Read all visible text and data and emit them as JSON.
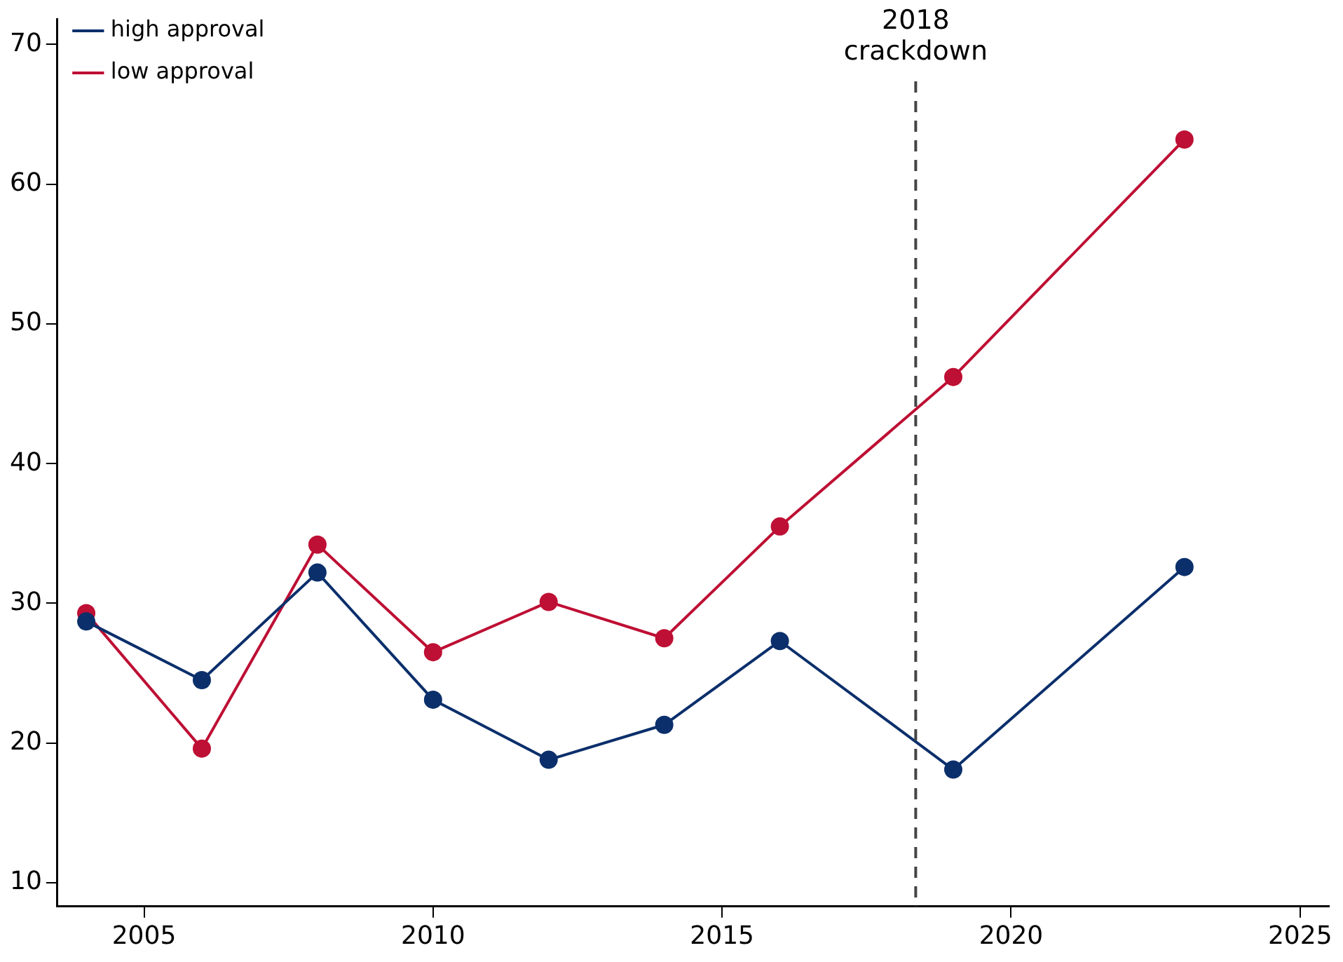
{
  "chart_data": {
    "type": "line",
    "marker": "circle",
    "legend": "top left",
    "grid": false,
    "xlim": [
      2003.5,
      2025.5
    ],
    "xticks": [
      2005,
      2010,
      2015,
      2020,
      2025
    ],
    "ylim": [
      8.3,
      71.8
    ],
    "yticks": [
      10,
      20,
      30,
      40,
      50,
      60,
      70
    ],
    "series": [
      {
        "name": "high approval",
        "color": "#0b2f6b",
        "x": [
          2004,
          2006,
          2008,
          2010,
          2012,
          2014,
          2016,
          2019,
          2023
        ],
        "values": [
          28.7,
          24.5,
          32.2,
          23.1,
          18.8,
          21.3,
          27.3,
          18.1,
          32.6
        ]
      },
      {
        "name": "low approval",
        "color": "#be0f34",
        "x": [
          2004,
          2006,
          2008,
          2010,
          2012,
          2014,
          2016,
          2019,
          2023
        ],
        "values": [
          29.3,
          19.6,
          34.2,
          26.5,
          30.1,
          27.5,
          35.5,
          46.2,
          63.2
        ]
      }
    ],
    "ref_lines": [
      {
        "axis": "x",
        "value": 2018.35,
        "label": "2018 crackdown",
        "color": "#444444",
        "line_style": "dashed"
      }
    ]
  }
}
